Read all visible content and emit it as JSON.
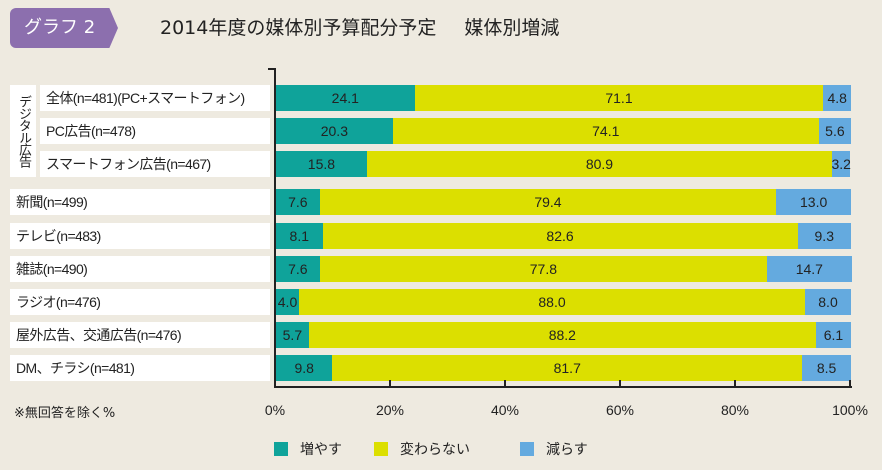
{
  "header": {
    "tab": "グラフ 2",
    "title": "2014年度の媒体別予算配分予定",
    "subtitle": "媒体別増減"
  },
  "group_label": "デジタル広告",
  "note": "※無回答を除く%",
  "chart_data": {
    "type": "bar",
    "orientation": "horizontal",
    "stacked": true,
    "categories": [
      "全体(n=481)(PC+スマートフォン)",
      "PC広告(n=478)",
      "スマートフォン広告(n=467)",
      "新聞(n=499)",
      "テレビ(n=483)",
      "雑誌(n=490)",
      "ラジオ(n=476)",
      "屋外広告、交通広告(n=476)",
      "DM、チラシ(n=481)"
    ],
    "series": [
      {
        "name": "増やす",
        "color": "#0fa39a",
        "values": [
          24.1,
          20.3,
          15.8,
          7.6,
          8.1,
          7.6,
          4.0,
          5.7,
          9.8
        ]
      },
      {
        "name": "変わらない",
        "color": "#dcdf00",
        "values": [
          71.1,
          74.1,
          80.9,
          79.4,
          82.6,
          77.8,
          88.0,
          88.2,
          81.7
        ]
      },
      {
        "name": "減らす",
        "color": "#64aadf",
        "values": [
          4.8,
          5.6,
          3.2,
          13.0,
          9.3,
          14.7,
          8.0,
          6.1,
          8.5
        ]
      }
    ],
    "xlim": [
      0,
      100
    ],
    "xticks": [
      "0%",
      "20%",
      "40%",
      "60%",
      "80%",
      "100%"
    ],
    "legend": "bottom"
  }
}
